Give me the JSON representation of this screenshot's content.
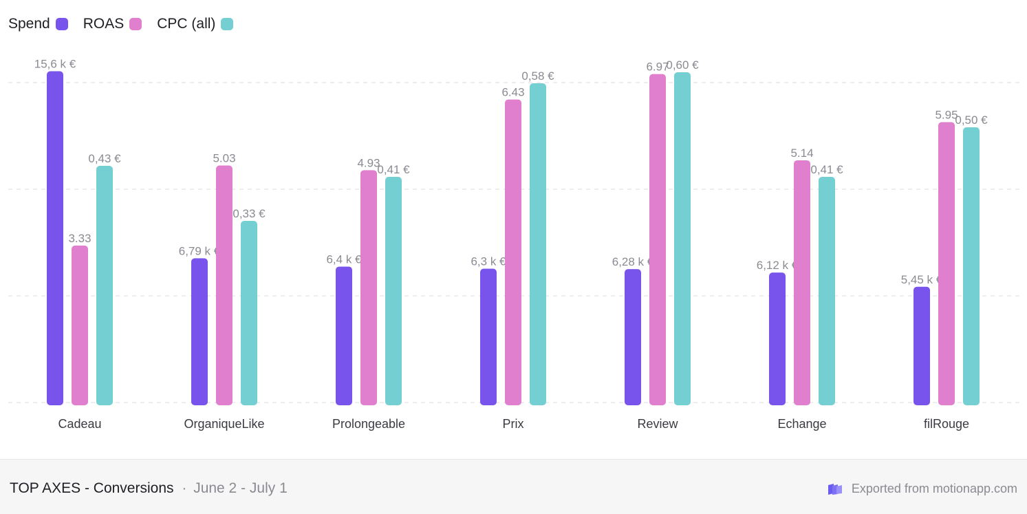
{
  "legend": [
    {
      "label": "Spend",
      "color": "#7854ec"
    },
    {
      "label": "ROAS",
      "color": "#e07fcd"
    },
    {
      "label": "CPC (all)",
      "color": "#74cfd3"
    }
  ],
  "chart_data": {
    "type": "bar",
    "categories": [
      "Cadeau",
      "OrganiqueLike",
      "Prolongeable",
      "Prix",
      "Review",
      "Echange",
      "filRouge"
    ],
    "series": [
      {
        "name": "Spend",
        "color": "#7854ec",
        "values": [
          15600,
          6790,
          6400,
          6300,
          6280,
          6120,
          5450
        ],
        "labels": [
          "15,6 k €",
          "6,79 k €",
          "6,4 k €",
          "6,3 k €",
          "6,28 k €",
          "6,12 k €",
          "5,45 k €"
        ],
        "max": 16200
      },
      {
        "name": "ROAS",
        "color": "#e07fcd",
        "values": [
          3.33,
          5.03,
          4.93,
          6.43,
          6.97,
          5.14,
          5.95
        ],
        "labels": [
          "3.33",
          "5.03",
          "4.93",
          "6.43",
          "6.97",
          "5.14",
          "5.95"
        ],
        "max": 7.3
      },
      {
        "name": "CPC (all)",
        "color": "#74cfd3",
        "values": [
          0.43,
          0.33,
          0.41,
          0.58,
          0.6,
          0.41,
          0.5
        ],
        "labels": [
          "0,43 €",
          "0,33 €",
          "0,41 €",
          "0,58 €",
          "0,60 €",
          "0,41 €",
          "0,50 €"
        ],
        "max": 0.625
      }
    ],
    "grid": true,
    "legend_position": "top-left"
  },
  "footer": {
    "title": "TOP AXES - Conversions",
    "separator": "·",
    "date_range": "June 2 - July 1",
    "export_text": "Exported from motionapp.com",
    "logo_icon": "motion-logo-icon"
  }
}
